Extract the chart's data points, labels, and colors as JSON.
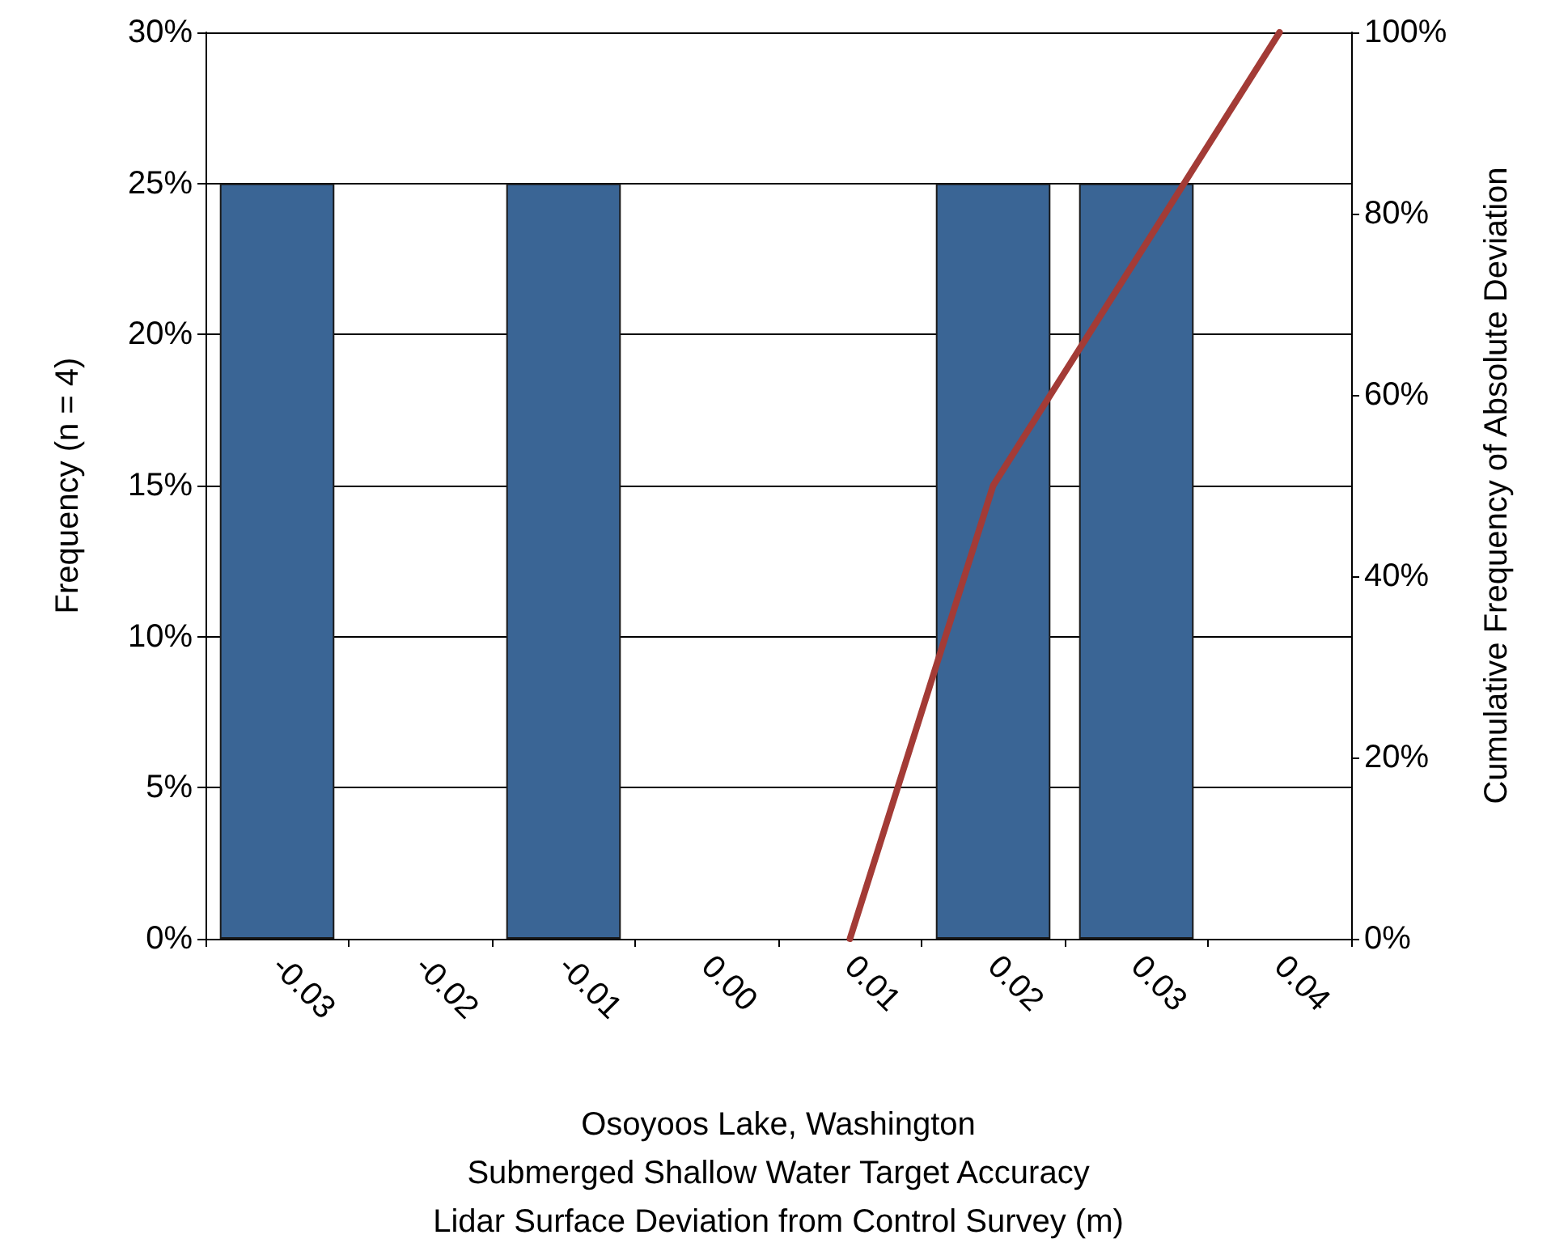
{
  "chart_data": {
    "type": "bar",
    "xlabel": "Osoyoos Lake, Washington\nSubmerged Shallow Water Target Accuracy\nLidar Surface Deviation from Control Survey (m)",
    "ylabel": "Frequency (n = 4)",
    "y2label": "Cumulative Frequency of Absolute Deviation",
    "categories": [
      "-0.03",
      "-0.02",
      "-0.01",
      "0.00",
      "0.01",
      "0.02",
      "0.03",
      "0.04"
    ],
    "series": [
      {
        "color": "#3a6595",
        "values": [
          25,
          0,
          25,
          0,
          0,
          25,
          25,
          0
        ]
      },
      {
        "type": "line",
        "axis": "y2",
        "color": "#a33b36",
        "values": [
          null,
          null,
          null,
          null,
          0,
          50,
          75,
          100
        ]
      }
    ],
    "ylim": [
      0,
      30
    ],
    "yticks": [
      {
        "value": 0,
        "label": "0%"
      },
      {
        "value": 5,
        "label": "5%"
      },
      {
        "value": 10,
        "label": "10%"
      },
      {
        "value": 15,
        "label": "15%"
      },
      {
        "value": 20,
        "label": "20%"
      },
      {
        "value": 25,
        "label": "25%"
      },
      {
        "value": 30,
        "label": "30%"
      }
    ],
    "y2lim": [
      0,
      100
    ],
    "y2ticks": [
      {
        "value": 0,
        "label": "0%"
      },
      {
        "value": 20,
        "label": "20%"
      },
      {
        "value": 40,
        "label": "40%"
      },
      {
        "value": 60,
        "label": "60%"
      },
      {
        "value": 80,
        "label": "80%"
      },
      {
        "value": 100,
        "label": "100%"
      }
    ],
    "grid": "y",
    "marker": "none",
    "line_style": "solid"
  }
}
